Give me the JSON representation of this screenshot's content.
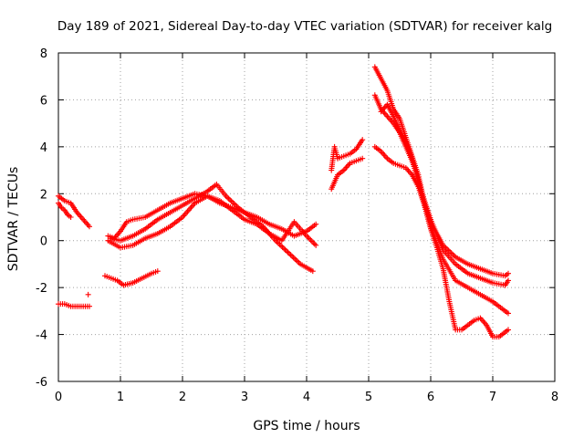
{
  "chart_data": {
    "type": "scatter",
    "title": "Day 189 of 2021, Sidereal Day-to-day VTEC variation (SDTVAR) for receiver kalg",
    "xlabel": "GPS time / hours",
    "ylabel": "SDTVAR / TECUs",
    "xlim": [
      0,
      8
    ],
    "ylim": [
      -6,
      8
    ],
    "xticks": [
      "0",
      "1",
      "2",
      "3",
      "4",
      "5",
      "6",
      "7",
      "8"
    ],
    "yticks": [
      "-6",
      "-4",
      "-2",
      "0",
      "2",
      "4",
      "6",
      "8"
    ],
    "grid": true,
    "marker": "+",
    "marker_color": "#ff0000",
    "series": [
      {
        "name": "s1",
        "x": [
          0.0,
          0.1,
          0.2,
          0.3,
          0.4,
          0.5
        ],
        "y": [
          1.9,
          1.7,
          1.6,
          1.2,
          0.9,
          0.6
        ]
      },
      {
        "name": "s2",
        "x": [
          0.0,
          0.05,
          0.1,
          0.15,
          0.2
        ],
        "y": [
          1.6,
          1.4,
          1.3,
          1.1,
          1.0
        ]
      },
      {
        "name": "s3",
        "x": [
          0.0,
          0.1,
          0.2,
          0.3,
          0.4,
          0.5
        ],
        "y": [
          -2.7,
          -2.7,
          -2.8,
          -2.8,
          -2.8,
          -2.8
        ]
      },
      {
        "name": "s4",
        "x": [
          0.48
        ],
        "y": [
          -2.3
        ]
      },
      {
        "name": "s5",
        "x": [
          0.75,
          0.85,
          0.95,
          1.05,
          1.2,
          1.35,
          1.5,
          1.6
        ],
        "y": [
          -1.5,
          -1.6,
          -1.7,
          -1.9,
          -1.8,
          -1.6,
          -1.4,
          -1.3
        ]
      },
      {
        "name": "s6",
        "x": [
          0.8,
          0.9,
          1.0,
          1.1,
          1.2,
          1.4,
          1.6,
          1.8,
          2.0,
          2.2,
          2.4,
          2.6,
          2.8,
          3.0,
          3.2,
          3.4,
          3.6,
          3.8,
          4.0,
          4.15
        ],
        "y": [
          0.2,
          0.1,
          0.4,
          0.8,
          0.9,
          1.0,
          1.3,
          1.6,
          1.8,
          2.0,
          1.9,
          1.6,
          1.4,
          1.2,
          1.0,
          0.7,
          0.5,
          0.2,
          0.4,
          0.7
        ]
      },
      {
        "name": "s7",
        "x": [
          0.85,
          1.0,
          1.2,
          1.4,
          1.6,
          1.8,
          2.0,
          2.2,
          2.4,
          2.55,
          2.7,
          2.9,
          3.1,
          3.3,
          3.5,
          3.7,
          3.9,
          4.1
        ],
        "y": [
          0.1,
          0.0,
          0.2,
          0.5,
          0.9,
          1.2,
          1.5,
          1.8,
          2.1,
          2.4,
          1.9,
          1.4,
          1.0,
          0.6,
          0.0,
          -0.5,
          -1.0,
          -1.3
        ]
      },
      {
        "name": "s8",
        "x": [
          0.8,
          1.0,
          1.2,
          1.4,
          1.6,
          1.8,
          2.0,
          2.1,
          2.2,
          2.4,
          2.6,
          2.8,
          3.0,
          3.2,
          3.4,
          3.6,
          3.8,
          4.0,
          4.15
        ],
        "y": [
          0.0,
          -0.3,
          -0.2,
          0.1,
          0.3,
          0.6,
          1.0,
          1.3,
          1.6,
          1.9,
          1.7,
          1.3,
          0.9,
          0.7,
          0.3,
          0.0,
          0.8,
          0.2,
          -0.2
        ]
      },
      {
        "name": "s9",
        "x": [
          4.4,
          4.45,
          4.5,
          4.6,
          4.7,
          4.8,
          4.9
        ],
        "y": [
          3.0,
          4.0,
          3.5,
          3.6,
          3.7,
          3.9,
          4.3
        ]
      },
      {
        "name": "s10",
        "x": [
          4.4,
          4.5,
          4.6,
          4.7,
          4.8,
          4.9
        ],
        "y": [
          2.2,
          2.8,
          3.0,
          3.3,
          3.4,
          3.5
        ]
      },
      {
        "name": "s11",
        "x": [
          5.1,
          5.2,
          5.3,
          5.4,
          5.5,
          5.6,
          5.7,
          5.8,
          5.9,
          6.0,
          6.2,
          6.4,
          6.6,
          6.8,
          7.0,
          7.2,
          7.25
        ],
        "y": [
          7.4,
          6.9,
          6.4,
          5.6,
          5.2,
          4.4,
          3.6,
          2.8,
          1.6,
          0.8,
          -0.2,
          -0.7,
          -1.0,
          -1.2,
          -1.4,
          -1.5,
          -1.4
        ]
      },
      {
        "name": "s12",
        "x": [
          5.1,
          5.2,
          5.3,
          5.4,
          5.5,
          5.6,
          5.7,
          5.8,
          5.9,
          6.0,
          6.2,
          6.4,
          6.6,
          6.8,
          7.0,
          7.2,
          7.25
        ],
        "y": [
          6.2,
          5.6,
          5.3,
          5.0,
          4.6,
          4.0,
          3.4,
          2.6,
          1.7,
          0.9,
          -0.4,
          -1.0,
          -1.4,
          -1.6,
          -1.8,
          -1.9,
          -1.7
        ]
      },
      {
        "name": "s13",
        "x": [
          5.1,
          5.2,
          5.3,
          5.4,
          5.5,
          5.6,
          5.7,
          5.8,
          5.9,
          6.0,
          6.2,
          6.4,
          6.6,
          6.8,
          7.0,
          7.2,
          7.25
        ],
        "y": [
          4.0,
          3.8,
          3.5,
          3.3,
          3.2,
          3.1,
          2.8,
          2.3,
          1.5,
          0.6,
          -0.8,
          -1.7,
          -2.0,
          -2.3,
          -2.6,
          -3.0,
          -3.1
        ]
      },
      {
        "name": "s14",
        "x": [
          5.2,
          5.3,
          5.4,
          5.5,
          5.6,
          5.7,
          5.8,
          5.9,
          6.0,
          6.1,
          6.2,
          6.3,
          6.4,
          6.5,
          6.6,
          6.7,
          6.8,
          6.9,
          7.0,
          7.1,
          7.2,
          7.25
        ],
        "y": [
          5.5,
          5.8,
          5.3,
          4.7,
          4.2,
          3.5,
          2.5,
          1.5,
          0.5,
          -0.3,
          -1.2,
          -2.6,
          -3.8,
          -3.8,
          -3.6,
          -3.4,
          -3.3,
          -3.6,
          -4.1,
          -4.1,
          -3.9,
          -3.8
        ]
      }
    ]
  }
}
